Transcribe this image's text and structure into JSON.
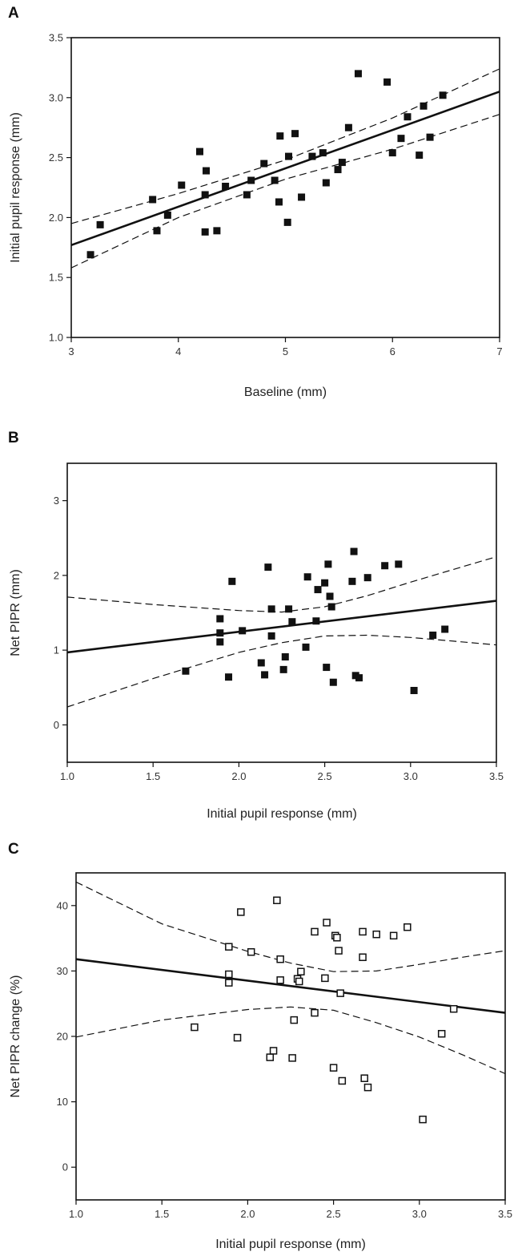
{
  "chart_data": [
    {
      "panel": "A",
      "type": "scatter",
      "xlabel": "Baseline (mm)",
      "ylabel": "Initial pupil response (mm)",
      "xlim": [
        3,
        7
      ],
      "ylim": [
        1.0,
        3.5
      ],
      "xticks": [
        3,
        4,
        5,
        6,
        7
      ],
      "yticks": [
        1.0,
        1.5,
        2.0,
        2.5,
        3.0,
        3.5
      ],
      "xtick_labels": [
        "3",
        "4",
        "5",
        "6",
        "7"
      ],
      "ytick_labels": [
        "1.0",
        "1.5",
        "2.0",
        "2.5",
        "3.0",
        "3.5"
      ],
      "marker": "filled-square",
      "points": [
        [
          3.18,
          1.69
        ],
        [
          3.27,
          1.94
        ],
        [
          3.76,
          2.15
        ],
        [
          3.8,
          1.89
        ],
        [
          3.9,
          2.02
        ],
        [
          4.03,
          2.27
        ],
        [
          4.2,
          2.55
        ],
        [
          4.25,
          2.19
        ],
        [
          4.26,
          2.39
        ],
        [
          4.25,
          1.88
        ],
        [
          4.36,
          1.89
        ],
        [
          4.44,
          2.26
        ],
        [
          4.64,
          2.19
        ],
        [
          4.68,
          2.31
        ],
        [
          4.8,
          2.45
        ],
        [
          4.9,
          2.31
        ],
        [
          4.94,
          2.13
        ],
        [
          4.95,
          2.68
        ],
        [
          5.02,
          1.96
        ],
        [
          5.03,
          2.51
        ],
        [
          5.09,
          2.7
        ],
        [
          5.15,
          2.17
        ],
        [
          5.25,
          2.51
        ],
        [
          5.35,
          2.54
        ],
        [
          5.38,
          2.29
        ],
        [
          5.49,
          2.4
        ],
        [
          5.53,
          2.46
        ],
        [
          5.59,
          2.75
        ],
        [
          5.68,
          3.2
        ],
        [
          5.95,
          3.13
        ],
        [
          6.0,
          2.54
        ],
        [
          6.08,
          2.66
        ],
        [
          6.14,
          2.84
        ],
        [
          6.25,
          2.52
        ],
        [
          6.29,
          2.93
        ],
        [
          6.35,
          2.67
        ],
        [
          6.47,
          3.02
        ]
      ],
      "regression": [
        [
          3,
          1.77
        ],
        [
          7,
          3.05
        ]
      ],
      "ci_upper": [
        [
          3,
          1.95
        ],
        [
          4,
          2.2
        ],
        [
          5,
          2.48
        ],
        [
          6,
          2.83
        ],
        [
          7,
          3.24
        ]
      ],
      "ci_lower": [
        [
          3,
          1.58
        ],
        [
          4,
          2.0
        ],
        [
          5,
          2.32
        ],
        [
          6,
          2.57
        ],
        [
          7,
          2.86
        ]
      ]
    },
    {
      "panel": "B",
      "type": "scatter",
      "xlabel": "Initial pupil response (mm)",
      "ylabel": "Net PIPR (mm)",
      "xlim": [
        1.0,
        3.5
      ],
      "ylim": [
        -0.5,
        3.5
      ],
      "xticks": [
        1.0,
        1.5,
        2.0,
        2.5,
        3.0,
        3.5
      ],
      "yticks": [
        0,
        1,
        2,
        3
      ],
      "xtick_labels": [
        "1.0",
        "1.5",
        "2.0",
        "2.5",
        "3.0",
        "3.5"
      ],
      "ytick_labels": [
        "0",
        "1",
        "2",
        "3"
      ],
      "marker": "filled-square",
      "points": [
        [
          1.69,
          0.72
        ],
        [
          1.89,
          1.42
        ],
        [
          1.89,
          1.23
        ],
        [
          1.89,
          1.11
        ],
        [
          1.94,
          0.64
        ],
        [
          1.96,
          1.92
        ],
        [
          2.02,
          1.26
        ],
        [
          2.13,
          0.83
        ],
        [
          2.15,
          0.67
        ],
        [
          2.17,
          2.11
        ],
        [
          2.19,
          1.19
        ],
        [
          2.19,
          1.55
        ],
        [
          2.26,
          0.74
        ],
        [
          2.27,
          0.91
        ],
        [
          2.29,
          1.55
        ],
        [
          2.31,
          1.38
        ],
        [
          2.39,
          1.04
        ],
        [
          2.4,
          1.98
        ],
        [
          2.45,
          1.39
        ],
        [
          2.46,
          1.81
        ],
        [
          2.5,
          1.9
        ],
        [
          2.51,
          0.77
        ],
        [
          2.52,
          2.15
        ],
        [
          2.53,
          1.72
        ],
        [
          2.54,
          1.58
        ],
        [
          2.55,
          0.57
        ],
        [
          2.66,
          1.92
        ],
        [
          2.67,
          2.32
        ],
        [
          2.68,
          0.66
        ],
        [
          2.7,
          0.63
        ],
        [
          2.75,
          1.97
        ],
        [
          2.85,
          2.13
        ],
        [
          2.93,
          2.15
        ],
        [
          3.02,
          0.46
        ],
        [
          3.13,
          1.2
        ],
        [
          3.2,
          1.28
        ]
      ],
      "regression": [
        [
          1.0,
          0.97
        ],
        [
          3.5,
          1.66
        ]
      ],
      "ci_upper": [
        [
          1.0,
          1.71
        ],
        [
          1.5,
          1.61
        ],
        [
          2.0,
          1.53
        ],
        [
          2.25,
          1.51
        ],
        [
          2.5,
          1.58
        ],
        [
          2.75,
          1.73
        ],
        [
          3.0,
          1.91
        ],
        [
          3.25,
          2.08
        ],
        [
          3.5,
          2.25
        ]
      ],
      "ci_lower": [
        [
          1.0,
          0.24
        ],
        [
          1.5,
          0.62
        ],
        [
          2.0,
          0.97
        ],
        [
          2.25,
          1.1
        ],
        [
          2.5,
          1.19
        ],
        [
          2.75,
          1.2
        ],
        [
          3.0,
          1.17
        ],
        [
          3.25,
          1.12
        ],
        [
          3.5,
          1.07
        ]
      ]
    },
    {
      "panel": "C",
      "type": "scatter",
      "xlabel": "Initial pupil response (mm)",
      "ylabel": "Net PIPR change (%)",
      "xlim": [
        1.0,
        3.5
      ],
      "ylim": [
        -5,
        45
      ],
      "xticks": [
        1.0,
        1.5,
        2.0,
        2.5,
        3.0,
        3.5
      ],
      "yticks": [
        0,
        10,
        20,
        30,
        40
      ],
      "xtick_labels": [
        "1.0",
        "1.5",
        "2.0",
        "2.5",
        "3.0",
        "3.5"
      ],
      "ytick_labels": [
        "0",
        "10",
        "20",
        "30",
        "40"
      ],
      "marker": "open-square",
      "points": [
        [
          1.69,
          21.4
        ],
        [
          1.89,
          33.7
        ],
        [
          1.89,
          29.5
        ],
        [
          1.89,
          28.2
        ],
        [
          1.94,
          19.8
        ],
        [
          1.96,
          39.0
        ],
        [
          2.02,
          32.9
        ],
        [
          2.13,
          16.8
        ],
        [
          2.15,
          17.8
        ],
        [
          2.17,
          40.8
        ],
        [
          2.19,
          28.6
        ],
        [
          2.19,
          31.8
        ],
        [
          2.26,
          16.7
        ],
        [
          2.27,
          22.5
        ],
        [
          2.29,
          28.8
        ],
        [
          2.3,
          28.4
        ],
        [
          2.31,
          29.9
        ],
        [
          2.39,
          23.6
        ],
        [
          2.39,
          36.0
        ],
        [
          2.45,
          28.9
        ],
        [
          2.46,
          37.4
        ],
        [
          2.5,
          15.2
        ],
        [
          2.51,
          35.4
        ],
        [
          2.52,
          35.1
        ],
        [
          2.53,
          33.1
        ],
        [
          2.54,
          26.6
        ],
        [
          2.55,
          13.2
        ],
        [
          2.67,
          36.0
        ],
        [
          2.67,
          32.1
        ],
        [
          2.68,
          13.6
        ],
        [
          2.7,
          12.2
        ],
        [
          2.75,
          35.6
        ],
        [
          2.85,
          35.4
        ],
        [
          2.93,
          36.7
        ],
        [
          3.02,
          7.3
        ],
        [
          3.13,
          20.4
        ],
        [
          3.2,
          24.2
        ]
      ],
      "regression": [
        [
          1.0,
          31.8
        ],
        [
          3.5,
          23.6
        ]
      ],
      "ci_upper": [
        [
          1.0,
          43.6
        ],
        [
          1.5,
          37.2
        ],
        [
          2.0,
          33.0
        ],
        [
          2.25,
          31.2
        ],
        [
          2.5,
          29.9
        ],
        [
          2.75,
          30.0
        ],
        [
          3.0,
          31.0
        ],
        [
          3.25,
          32.1
        ],
        [
          3.5,
          33.1
        ]
      ],
      "ci_lower": [
        [
          1.0,
          19.9
        ],
        [
          1.5,
          22.5
        ],
        [
          2.0,
          24.1
        ],
        [
          2.25,
          24.5
        ],
        [
          2.5,
          24.0
        ],
        [
          2.75,
          22.1
        ],
        [
          3.0,
          19.9
        ],
        [
          3.25,
          17.2
        ],
        [
          3.5,
          14.3
        ]
      ]
    }
  ]
}
